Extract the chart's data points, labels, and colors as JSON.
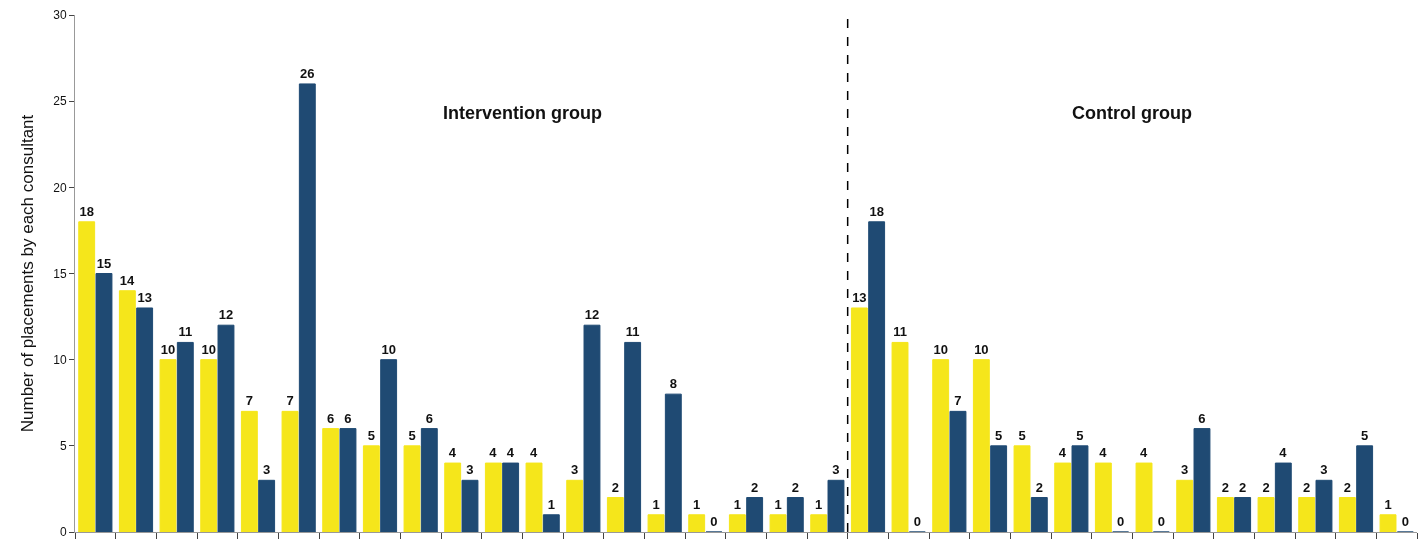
{
  "chart_data": {
    "type": "bar",
    "ylabel": "Number of placements by each consultant",
    "categories": [
      null,
      null,
      null,
      null,
      null,
      null,
      null,
      null,
      null,
      null,
      null,
      null,
      null,
      null,
      null,
      null,
      null,
      null,
      null,
      null,
      null,
      null,
      null,
      null,
      null,
      null,
      null,
      null,
      null,
      null,
      null,
      null,
      null
    ],
    "series": [
      {
        "color": "#f5e61b",
        "values": [
          18,
          14,
          10,
          10,
          7,
          7,
          6,
          5,
          5,
          4,
          4,
          4,
          3,
          2,
          1,
          1,
          1,
          1,
          1,
          13,
          11,
          10,
          10,
          5,
          4,
          4,
          4,
          3,
          2,
          2,
          2,
          2,
          1
        ]
      },
      {
        "color": "#1f4a73",
        "values": [
          15,
          13,
          11,
          12,
          3,
          26,
          6,
          10,
          6,
          3,
          4,
          1,
          12,
          11,
          8,
          0,
          2,
          2,
          3,
          18,
          0,
          7,
          5,
          2,
          5,
          0,
          0,
          6,
          2,
          4,
          3,
          5,
          0
        ]
      }
    ],
    "ylim": [
      0,
      30
    ],
    "yticks": [
      0,
      5,
      10,
      15,
      20,
      25,
      30
    ],
    "data_labels": true,
    "annotations": [
      "Intervention group",
      "Control group"
    ]
  }
}
